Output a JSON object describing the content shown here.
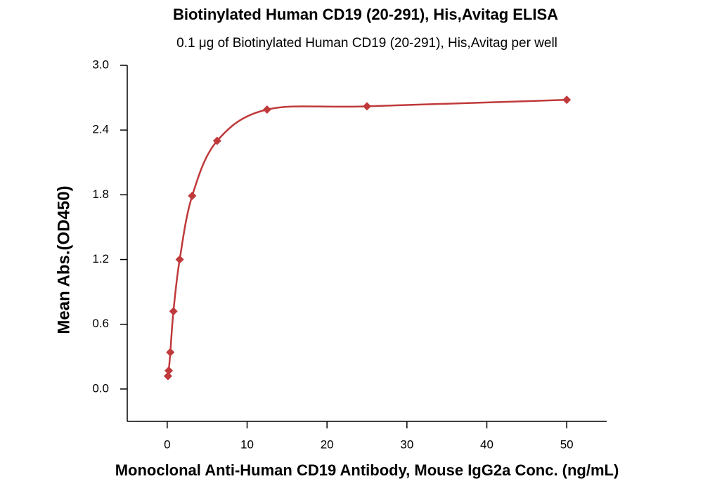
{
  "chart_data": {
    "type": "scatter",
    "title": "Biotinylated Human CD19 (20-291), His,Avitag ELISA",
    "subtitle": "0.1 μg of Biotinylated Human CD19 (20-291), His,Avitag per well",
    "x_label": "Monoclonal Anti-Human CD19 Antibody, Mouse IgG2a Conc. (ng/mL)",
    "y_label": "Mean Abs.(OD450)",
    "x": [
      0.098,
      0.195,
      0.39,
      0.78,
      1.5625,
      3.125,
      6.25,
      12.5,
      25,
      50
    ],
    "series": [
      {
        "color": "#c0393b",
        "values": [
          0.12,
          0.17,
          0.34,
          0.72,
          1.2,
          1.79,
          2.3,
          2.59,
          2.62,
          2.68
        ]
      }
    ],
    "xlim": [
      -5,
      55
    ],
    "ylim": [
      -0.3,
      3.0
    ],
    "xticks": [
      0,
      10,
      20,
      30,
      40,
      50
    ],
    "yticks": [
      {
        "value": 0,
        "label": "0.0"
      },
      {
        "value": 0.6,
        "label": "0.6"
      },
      {
        "value": 1.2,
        "label": "1.2"
      },
      {
        "value": 1.8,
        "label": "1.8"
      },
      {
        "value": 2.4,
        "label": "2.4"
      },
      {
        "value": 3.0,
        "label": "3.0"
      }
    ],
    "fit_curve": true
  }
}
